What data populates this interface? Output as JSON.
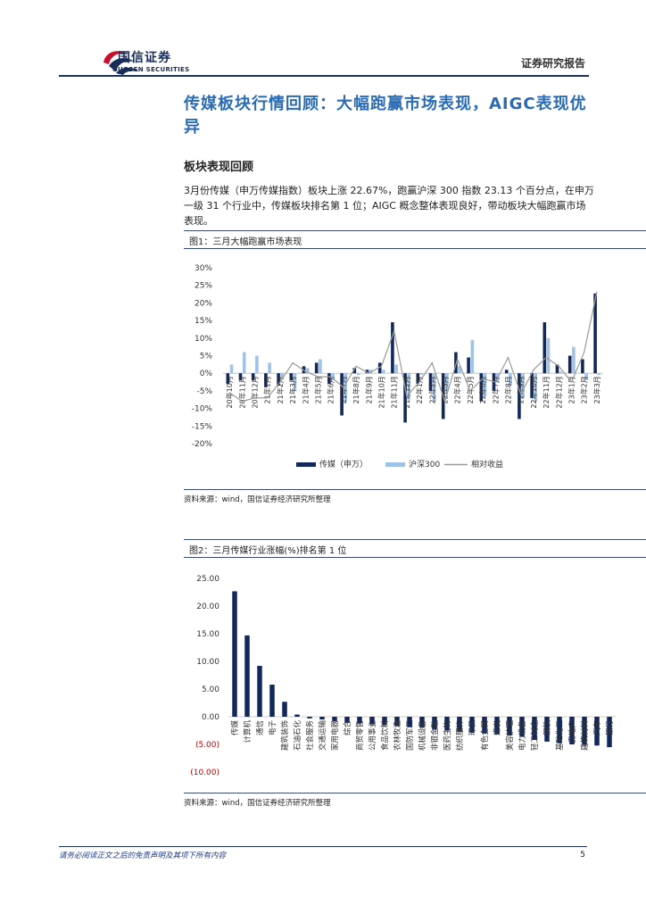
{
  "header": {
    "logo_cn": "国信证券",
    "logo_en": "GUOSEN SECURITIES",
    "report_type": "证券研究报告"
  },
  "section_title": "传媒板块行情回顾：大幅跑赢市场表现，AIGC表现优异",
  "subsection_title": "板块表现回顾",
  "paragraph": "3月份传媒（申万传媒指数）板块上涨 22.67%，跑赢沪深 300 指数 23.13 个百分点，在申万一级 31 个行业中，传媒板块排名第 1 位；AIGC 概念整体表现良好，带动板块大幅跑赢市场表现。",
  "figure1": {
    "title": "图1：三月大幅跑赢市场表现",
    "source": "资料来源：wind，国信证券经济研究所整理"
  },
  "figure2": {
    "title": "图2：三月传媒行业涨幅(%)排名第 1 位",
    "source": "资料来源：wind，国信证券经济研究所整理"
  },
  "colors": {
    "navy": "#13285a",
    "light_blue": "#9fc3e7",
    "gray_line": "#9a9a9a",
    "negative_label": "#c00000",
    "title_blue": "#2a6bb3"
  },
  "chart_data": [
    {
      "type": "bar",
      "y_tick_labels": [
        "30%",
        "25%",
        "20%",
        "15%",
        "10%",
        "5%",
        "0%",
        "-5%",
        "-10%",
        "-15%",
        "-20%"
      ],
      "ylim": [
        -20,
        30
      ],
      "categories": [
        "20年10月",
        "20年11月",
        "20年12月",
        "21年1月",
        "21年2月",
        "21年3月",
        "21年4月",
        "21年5月",
        "21年6月",
        "21年7月",
        "21年8月",
        "21年9月",
        "21年10月",
        "21年11月",
        "21年12月",
        "22年1月",
        "22年2月",
        "22年3月",
        "22年4月",
        "22年5月",
        "22年6月",
        "22年7月",
        "22年8月",
        "22年9月",
        "22年10月",
        "22年11月",
        "22年12月",
        "23年1月",
        "23年2月",
        "23年3月"
      ],
      "series": [
        {
          "name": "传媒（申万）",
          "kind": "bar",
          "color": "#13285a",
          "values": [
            -3.0,
            -2.0,
            -2.0,
            -4.0,
            -3.5,
            -2.0,
            2.0,
            3.0,
            -3.0,
            -12.0,
            1.5,
            1.0,
            3.0,
            14.5,
            -14.0,
            -3.0,
            -5.0,
            -13.0,
            6.0,
            4.5,
            -8.0,
            -5.0,
            1.0,
            -13.0,
            -7.0,
            14.5,
            2.5,
            5.0,
            4.0,
            22.7
          ]
        },
        {
          "name": "沪深300",
          "kind": "bar",
          "color": "#9fc3e7",
          "values": [
            2.5,
            6.0,
            5.0,
            3.0,
            -1.0,
            -5.0,
            1.5,
            4.0,
            -2.0,
            -8.0,
            -0.5,
            1.0,
            1.0,
            2.5,
            -7.5,
            -0.5,
            -8.0,
            -5.0,
            2.0,
            9.5,
            -6.5,
            -2.5,
            -3.5,
            -7.0,
            -8.0,
            10.0,
            0.5,
            7.5,
            -2.0,
            -0.5
          ]
        },
        {
          "name": "相对收益",
          "kind": "line",
          "color": "#9a9a9a",
          "values": [
            -5.5,
            -8.0,
            -7.0,
            -7.0,
            -2.5,
            3.0,
            0.5,
            -1.0,
            -1.0,
            -4.0,
            2.0,
            0.0,
            2.0,
            12.0,
            -6.5,
            -2.5,
            3.0,
            -8.0,
            4.0,
            -5.0,
            -1.5,
            -2.5,
            4.5,
            -6.0,
            1.0,
            4.5,
            2.0,
            -2.5,
            6.0,
            23.2
          ]
        }
      ],
      "legend_position": "bottom"
    },
    {
      "type": "bar",
      "y_tick_labels": [
        "25.00",
        "20.00",
        "15.00",
        "10.00",
        "5.00",
        "0.00",
        "(5.00)",
        "(10.00)"
      ],
      "ylim": [
        -10,
        25
      ],
      "categories": [
        "传媒",
        "计算机",
        "通信",
        "电子",
        "建筑装饰",
        "石油石化",
        "社会服务",
        "交通运输",
        "家用电器",
        "综合",
        "商贸零售",
        "公用事业",
        "食品饮料",
        "农林牧渔",
        "国防军工",
        "机械设备",
        "非银金融",
        "医药生物",
        "纺织服饰",
        "环保",
        "有色金属",
        "煤炭",
        "美容护理",
        "电力设备",
        "轻工制造",
        "钢铁",
        "基础化工",
        "房地产",
        "建筑材料",
        "汽车",
        "银行"
      ],
      "values": [
        22.67,
        14.7,
        9.2,
        5.8,
        2.7,
        0.4,
        -0.3,
        -0.5,
        -0.8,
        -1.1,
        -1.2,
        -1.4,
        -1.5,
        -1.7,
        -1.9,
        -2.0,
        -2.3,
        -2.5,
        -2.7,
        -2.9,
        -3.0,
        -3.2,
        -3.4,
        -3.6,
        -4.2,
        -4.5,
        -4.8,
        -5.0,
        -5.1,
        -5.2,
        -5.5
      ]
    }
  ],
  "footer": {
    "disclaimer": "请务必阅读正文之后的免责声明及其项下所有内容",
    "page_number": "5"
  }
}
